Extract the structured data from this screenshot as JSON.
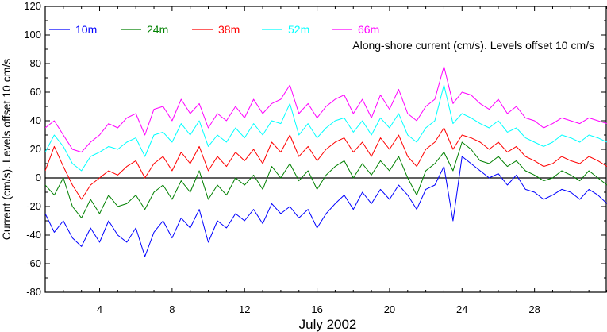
{
  "chart_data": {
    "type": "line",
    "title": "",
    "annotation": "Along-shore current (cm/s). Levels offset 10 cm/s",
    "xlabel": "July 2002",
    "ylabel": "Current (cm/s). Levels offset 10 cm/s",
    "xlim": [
      1,
      32
    ],
    "ylim": [
      -80,
      120
    ],
    "x_ticks": [
      4,
      8,
      12,
      16,
      20,
      24,
      28
    ],
    "y_ticks": [
      -80,
      -60,
      -40,
      -20,
      0,
      20,
      40,
      60,
      80,
      100,
      120
    ],
    "zero_line": 0,
    "grid": false,
    "legend_placement": "top-left, horizontal",
    "series": [
      {
        "name": "10m",
        "color": "#0000ff",
        "x": [
          1,
          1.5,
          2,
          2.5,
          3,
          3.5,
          4,
          4.5,
          5,
          5.5,
          6,
          6.5,
          7,
          7.5,
          8,
          8.5,
          9,
          9.5,
          10,
          10.5,
          11,
          11.5,
          12,
          12.5,
          13,
          13.5,
          14,
          14.5,
          15,
          15.5,
          16,
          16.5,
          17,
          17.5,
          18,
          18.5,
          19,
          19.5,
          20,
          20.5,
          21,
          21.5,
          22,
          22.5,
          23,
          23.5,
          24,
          24.5,
          25,
          25.5,
          26,
          26.5,
          27,
          27.5,
          28,
          28.5,
          29,
          29.5,
          30,
          30.5,
          31,
          31.5,
          32
        ],
        "y": [
          -25,
          -38,
          -30,
          -42,
          -48,
          -35,
          -45,
          -30,
          -40,
          -45,
          -35,
          -55,
          -38,
          -30,
          -42,
          -28,
          -35,
          -22,
          -45,
          -30,
          -35,
          -25,
          -30,
          -22,
          -32,
          -18,
          -25,
          -20,
          -28,
          -22,
          -35,
          -25,
          -18,
          -12,
          -22,
          -10,
          -18,
          -8,
          -15,
          -5,
          -12,
          -22,
          -8,
          -5,
          8,
          -30,
          15,
          10,
          5,
          0,
          3,
          -5,
          2,
          -8,
          -10,
          -15,
          -12,
          -8,
          -10,
          -15,
          -8,
          -12,
          -18
        ]
      },
      {
        "name": "24m",
        "color": "#008000",
        "x": [
          1,
          1.5,
          2,
          2.5,
          3,
          3.5,
          4,
          4.5,
          5,
          5.5,
          6,
          6.5,
          7,
          7.5,
          8,
          8.5,
          9,
          9.5,
          10,
          10.5,
          11,
          11.5,
          12,
          12.5,
          13,
          13.5,
          14,
          14.5,
          15,
          15.5,
          16,
          16.5,
          17,
          17.5,
          18,
          18.5,
          19,
          19.5,
          20,
          20.5,
          21,
          21.5,
          22,
          22.5,
          23,
          23.5,
          24,
          24.5,
          25,
          25.5,
          26,
          26.5,
          27,
          27.5,
          28,
          28.5,
          29,
          29.5,
          30,
          30.5,
          31,
          31.5,
          32
        ],
        "y": [
          -5,
          -12,
          0,
          -20,
          -28,
          -15,
          -25,
          -12,
          -20,
          -18,
          -12,
          -22,
          -10,
          -5,
          -15,
          -2,
          -10,
          5,
          -15,
          -5,
          -12,
          0,
          -5,
          2,
          -8,
          8,
          0,
          10,
          -2,
          5,
          -8,
          2,
          8,
          12,
          0,
          10,
          2,
          12,
          5,
          15,
          0,
          -12,
          5,
          10,
          18,
          5,
          25,
          20,
          12,
          10,
          15,
          8,
          12,
          5,
          2,
          -2,
          0,
          5,
          2,
          -2,
          5,
          0,
          -5
        ]
      },
      {
        "name": "38m",
        "color": "#ff0000",
        "x": [
          1,
          1.5,
          2,
          2.5,
          3,
          3.5,
          4,
          4.5,
          5,
          5.5,
          6,
          6.5,
          7,
          7.5,
          8,
          8.5,
          9,
          9.5,
          10,
          10.5,
          11,
          11.5,
          12,
          12.5,
          13,
          13.5,
          14,
          14.5,
          15,
          15.5,
          16,
          16.5,
          17,
          17.5,
          18,
          18.5,
          19,
          19.5,
          20,
          20.5,
          21,
          21.5,
          22,
          22.5,
          23,
          23.5,
          24,
          24.5,
          25,
          25.5,
          26,
          26.5,
          27,
          27.5,
          28,
          28.5,
          29,
          29.5,
          30,
          30.5,
          31,
          31.5,
          32
        ],
        "y": [
          5,
          22,
          8,
          -5,
          -15,
          -5,
          0,
          5,
          2,
          8,
          12,
          0,
          10,
          15,
          5,
          18,
          10,
          22,
          5,
          15,
          8,
          18,
          12,
          20,
          10,
          25,
          18,
          30,
          15,
          22,
          12,
          20,
          25,
          28,
          18,
          25,
          15,
          28,
          20,
          30,
          15,
          8,
          20,
          25,
          35,
          20,
          30,
          28,
          25,
          20,
          25,
          18,
          22,
          15,
          12,
          8,
          10,
          15,
          12,
          10,
          15,
          12,
          8
        ]
      },
      {
        "name": "52m",
        "color": "#00ffff",
        "x": [
          1,
          1.5,
          2,
          2.5,
          3,
          3.5,
          4,
          4.5,
          5,
          5.5,
          6,
          6.5,
          7,
          7.5,
          8,
          8.5,
          9,
          9.5,
          10,
          10.5,
          11,
          11.5,
          12,
          12.5,
          13,
          13.5,
          14,
          14.5,
          15,
          15.5,
          16,
          16.5,
          17,
          17.5,
          18,
          18.5,
          19,
          19.5,
          20,
          20.5,
          21,
          21.5,
          22,
          22.5,
          23,
          23.5,
          24,
          24.5,
          25,
          25.5,
          26,
          26.5,
          27,
          27.5,
          28,
          28.5,
          29,
          29.5,
          30,
          30.5,
          31,
          31.5,
          32
        ],
        "y": [
          18,
          30,
          22,
          10,
          5,
          15,
          18,
          22,
          20,
          25,
          28,
          15,
          30,
          32,
          25,
          38,
          30,
          40,
          22,
          30,
          25,
          35,
          28,
          38,
          30,
          40,
          38,
          52,
          30,
          38,
          28,
          35,
          40,
          42,
          32,
          40,
          30,
          42,
          35,
          45,
          30,
          25,
          35,
          40,
          65,
          38,
          45,
          42,
          38,
          35,
          40,
          32,
          35,
          28,
          25,
          22,
          25,
          30,
          28,
          25,
          30,
          28,
          25
        ]
      },
      {
        "name": "66m",
        "color": "#ff00ff",
        "x": [
          1,
          1.5,
          2,
          2.5,
          3,
          3.5,
          4,
          4.5,
          5,
          5.5,
          6,
          6.5,
          7,
          7.5,
          8,
          8.5,
          9,
          9.5,
          10,
          10.5,
          11,
          11.5,
          12,
          12.5,
          13,
          13.5,
          14,
          14.5,
          15,
          15.5,
          16,
          16.5,
          17,
          17.5,
          18,
          18.5,
          19,
          19.5,
          20,
          20.5,
          21,
          21.5,
          22,
          22.5,
          23,
          23.5,
          24,
          24.5,
          25,
          25.5,
          26,
          26.5,
          27,
          27.5,
          28,
          28.5,
          29,
          29.5,
          30,
          30.5,
          31,
          31.5,
          32
        ],
        "y": [
          35,
          40,
          30,
          20,
          18,
          25,
          30,
          38,
          35,
          42,
          45,
          30,
          48,
          50,
          40,
          55,
          45,
          52,
          35,
          45,
          40,
          50,
          42,
          55,
          45,
          52,
          55,
          65,
          45,
          52,
          42,
          50,
          55,
          58,
          45,
          55,
          42,
          58,
          48,
          62,
          45,
          40,
          50,
          55,
          78,
          52,
          60,
          58,
          52,
          48,
          55,
          45,
          50,
          42,
          40,
          35,
          38,
          42,
          40,
          38,
          42,
          40,
          38
        ]
      }
    ]
  }
}
